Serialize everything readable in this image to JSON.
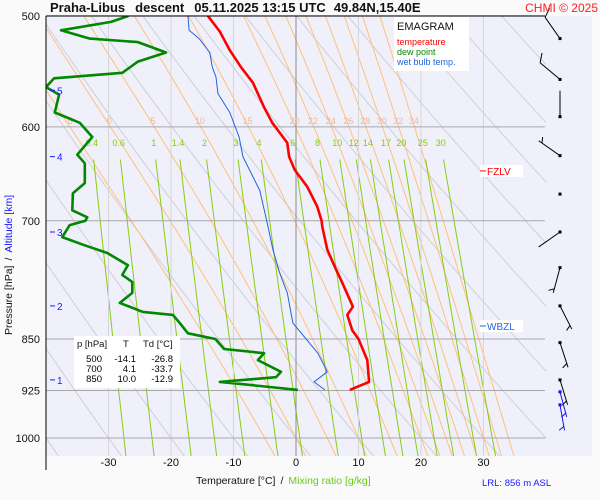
{
  "header": {
    "station": "Praha-Libus",
    "phase": "descent",
    "datetime": "05.11.2025 13:15 UTC",
    "coords": "49.84N,15.40E",
    "copyright": "CHMI © 2025"
  },
  "legend": {
    "title": "EMAGRAM",
    "temperature": "temperature",
    "dew_point": "dew point",
    "wet_bulb": "wet bulb temp."
  },
  "footer": {
    "xlabel": "Temperature [°C]",
    "separator": "/",
    "xlabel2": "Mixing ratio [g/kg]",
    "lrl": "LRL: 856 m ASL"
  },
  "yaxis": {
    "label": "Pressure [hPa]",
    "separator": "/",
    "label2": "Altitude [km]"
  },
  "table": {
    "headers": [
      "p [hPa]",
      "T",
      "Td [°C]"
    ],
    "rows": [
      [
        "500",
        "-14.1",
        "-26.8"
      ],
      [
        "700",
        "4.1",
        "-33.7"
      ],
      [
        "850",
        "10.0",
        "-12.9"
      ]
    ]
  },
  "levels": [
    {
      "label": "FZLV",
      "p": 645,
      "color": "#ff0000"
    },
    {
      "label": "WBZL",
      "p": 832,
      "color": "#2266ee"
    }
  ],
  "colors": {
    "temperature": "#ff0000",
    "dew_point": "#008800",
    "wet_bulb": "#1e64dc",
    "dry_adiabat": "#cfcfd6",
    "moist_adiabat": "#ffc07a",
    "mixing_ratio": "#88cc11",
    "theta_w_label": "#f4b49a",
    "plot_bg": "#f0f0fb",
    "altitude": "#1a1aff"
  },
  "chart_data": {
    "type": "line",
    "title": "EMAGRAM",
    "xlabel": "Temperature [°C]",
    "ylabel": "Pressure [hPa]",
    "xlim": [
      -40,
      40
    ],
    "ylim": [
      1030,
      500
    ],
    "y_scale": "log",
    "x_ticks": [
      -30,
      -20,
      -10,
      0,
      10,
      20,
      30
    ],
    "y_ticks": [
      500,
      600,
      700,
      850,
      925,
      1000
    ],
    "grid": true,
    "legend_position": "top-right",
    "series": [
      {
        "name": "temperature",
        "points": [
          [
            500,
            -14.1
          ],
          [
            513,
            -12.2
          ],
          [
            529,
            -10.6
          ],
          [
            544,
            -8.8
          ],
          [
            558,
            -6.9
          ],
          [
            581,
            -5.1
          ],
          [
            596,
            -3.8
          ],
          [
            616,
            -1.4
          ],
          [
            630,
            -1.1
          ],
          [
            644,
            -0.2
          ],
          [
            662,
            1.8
          ],
          [
            684,
            3.4
          ],
          [
            700,
            4.1
          ],
          [
            707,
            4.2
          ],
          [
            734,
            5.0
          ],
          [
            755,
            6.2
          ],
          [
            775,
            7.4
          ],
          [
            806,
            9.1
          ],
          [
            817,
            8.2
          ],
          [
            838,
            9.0
          ],
          [
            850,
            10.0
          ],
          [
            880,
            11.4
          ],
          [
            912,
            11.7
          ],
          [
            924,
            8.6
          ]
        ]
      },
      {
        "name": "dew point",
        "points": [
          [
            500,
            -26.8
          ],
          [
            505,
            -29.6
          ],
          [
            512,
            -37.6
          ],
          [
            519,
            -33.0
          ],
          [
            522,
            -25.3
          ],
          [
            531,
            -20.8
          ],
          [
            539,
            -25.3
          ],
          [
            549,
            -27.8
          ],
          [
            554,
            -38.7
          ],
          [
            562,
            -40.0
          ],
          [
            569,
            -37.9
          ],
          [
            586,
            -38.6
          ],
          [
            596,
            -34.6
          ],
          [
            610,
            -32.6
          ],
          [
            628,
            -35.0
          ],
          [
            637,
            -33.8
          ],
          [
            658,
            -33.8
          ],
          [
            669,
            -35.7
          ],
          [
            688,
            -35.8
          ],
          [
            696,
            -33.4
          ],
          [
            700,
            -33.7
          ],
          [
            705,
            -36.2
          ],
          [
            719,
            -37.4
          ],
          [
            728,
            -34.1
          ],
          [
            738,
            -30.2
          ],
          [
            753,
            -26.9
          ],
          [
            765,
            -27.8
          ],
          [
            774,
            -26.2
          ],
          [
            788,
            -26.2
          ],
          [
            801,
            -28.2
          ],
          [
            813,
            -24.5
          ],
          [
            817,
            -19.7
          ],
          [
            828,
            -18.6
          ],
          [
            842,
            -17.3
          ],
          [
            850,
            -12.9
          ],
          [
            864,
            -11.5
          ],
          [
            870,
            -5.1
          ],
          [
            880,
            -6.1
          ],
          [
            897,
            -2.4
          ],
          [
            905,
            -3.2
          ],
          [
            912,
            -12.2
          ],
          [
            914,
            -10.1
          ],
          [
            924,
            0.3
          ]
        ]
      },
      {
        "name": "wet bulb temp.",
        "points": [
          [
            499,
            -17.3
          ],
          [
            512,
            -17.1
          ],
          [
            519,
            -15.5
          ],
          [
            531,
            -13.8
          ],
          [
            544,
            -13.4
          ],
          [
            553,
            -12.8
          ],
          [
            568,
            -12.5
          ],
          [
            586,
            -10.6
          ],
          [
            610,
            -9.1
          ],
          [
            630,
            -8.5
          ],
          [
            666,
            -5.8
          ],
          [
            703,
            -4.6
          ],
          [
            734,
            -3.7
          ],
          [
            763,
            -2.6
          ],
          [
            788,
            -1.4
          ],
          [
            828,
            -0.5
          ],
          [
            870,
            3.5
          ],
          [
            897,
            5.0
          ],
          [
            912,
            2.9
          ],
          [
            924,
            4.6
          ]
        ]
      }
    ],
    "theta_w_labels": [
      -5,
      0,
      5,
      10,
      15,
      20,
      22,
      24,
      26,
      28,
      30,
      32,
      34
    ],
    "mixing_ratio_labels": [
      0.4,
      0.6,
      1,
      1.4,
      2,
      3,
      4,
      6,
      8,
      10,
      12,
      14,
      17,
      20,
      25,
      30
    ],
    "dry_adiabats_theta_c": [
      -40,
      -30,
      -20,
      -10,
      0,
      10,
      20,
      30,
      40,
      50,
      60,
      70,
      80,
      90,
      100,
      110,
      120
    ],
    "altitude_ticks_km": [
      {
        "km": 1,
        "p": 909
      },
      {
        "km": 2,
        "p": 805
      },
      {
        "km": 3,
        "p": 713
      },
      {
        "km": 4,
        "p": 630
      },
      {
        "km": 5,
        "p": 565
      }
    ],
    "wind_barbs": [
      {
        "p": 519,
        "dir": 325,
        "speed": 10
      },
      {
        "p": 555,
        "dir": 310,
        "speed": 10
      },
      {
        "p": 590,
        "dir": 0,
        "speed": 3
      },
      {
        "p": 629,
        "dir": 305,
        "speed": 5
      },
      {
        "p": 670,
        "dir": 0,
        "speed": 0
      },
      {
        "p": 713,
        "dir": 235,
        "speed": 3
      },
      {
        "p": 756,
        "dir": 195,
        "speed": 5
      },
      {
        "p": 805,
        "dir": 153,
        "speed": 5
      },
      {
        "p": 855,
        "dir": 162,
        "speed": 5
      },
      {
        "p": 909,
        "dir": 163,
        "speed": 5
      },
      {
        "p": 927,
        "dir": 165,
        "speed": 5,
        "surface": true
      },
      {
        "p": 947,
        "dir": 170,
        "speed": 5,
        "surface": true
      }
    ]
  }
}
